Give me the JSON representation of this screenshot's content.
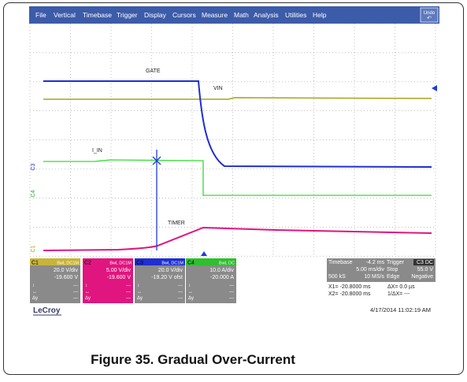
{
  "menu": [
    "File",
    "Vertical",
    "Timebase",
    "Trigger",
    "Display",
    "Cursors",
    "Measure",
    "Math",
    "Analysis",
    "Utilities",
    "Help"
  ],
  "undo": "Undo",
  "trace_labels": {
    "gate": "GATE",
    "vin": "VIN",
    "iin": "I_IN",
    "timer": "TIMER"
  },
  "channel_markers": [
    "C3",
    "C4",
    "C1"
  ],
  "channels": [
    {
      "name": "C1",
      "flags": "BwL DC1M",
      "scale": "20.0 V/div",
      "offset": "-19.600 V"
    },
    {
      "name": "C2",
      "flags": "BwL DC1M",
      "scale": "5.00 V/div",
      "offset": "-19.600 V"
    },
    {
      "name": "C3",
      "flags": "BwL DC1M",
      "scale": "20.0 V/div",
      "offset": "-19.20 V ofst"
    },
    {
      "name": "C4",
      "flags": "BwL DC",
      "scale": "10.0 A/div",
      "offset": "-20.000 A"
    }
  ],
  "channel_rows": [
    "↕",
    "↔",
    "Δy"
  ],
  "channel_row_value": "---",
  "timebase": {
    "label": "Timebase",
    "delay": "-4.2 ms",
    "per_div": "5.00 ms/div",
    "samples": "500 kS",
    "rate": "10 MS/s"
  },
  "trigger": {
    "label": "Trigger",
    "source": "C3 DC",
    "mode": "Stop",
    "level": "55.0 V",
    "type": "Edge",
    "slope": "Negative"
  },
  "cursors": [
    {
      "x": "X1= -20.8000 ms",
      "d": "ΔX=  0.0 µs"
    },
    {
      "x": "X2= -20.8000 ms",
      "d": "1/ΔX=  ---"
    }
  ],
  "brand": "LeCroy",
  "timestamp": "4/17/2014 11:02:19 AM",
  "caption": "Figure 35. Gradual Over-Current"
}
